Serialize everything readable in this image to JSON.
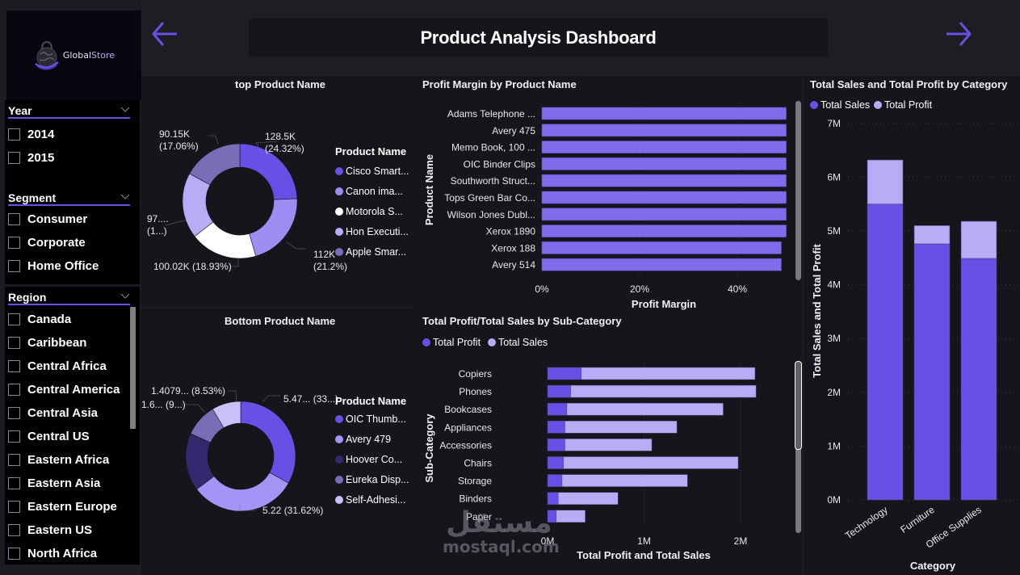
{
  "header": {
    "title": "Product Analysis Dashboard",
    "back_icon": "arrow-left-icon",
    "forward_icon": "arrow-right-icon",
    "accent_color": "#6650E6"
  },
  "logo": {
    "brand_prefix": "Global",
    "brand_suffix": "Store",
    "icon": "shopping-bag-globe-icon"
  },
  "slicers": {
    "year": {
      "title": "Year",
      "items": [
        "2014",
        "2015"
      ]
    },
    "segment": {
      "title": "Segment",
      "items": [
        "Consumer",
        "Corporate",
        "Home Office"
      ]
    },
    "region": {
      "title": "Region",
      "items": [
        "Canada",
        "Caribbean",
        "Central Africa",
        "Central America",
        "Central Asia",
        "Central US",
        "Eastern Africa",
        "Eastern Asia",
        "Eastern Europe",
        "Eastern US",
        "North Africa"
      ]
    }
  },
  "watermark": {
    "arabic": "مستقل",
    "latin": "mostaql.com"
  },
  "chart_data": [
    {
      "id": "top_products",
      "type": "pie",
      "variant": "donut",
      "title": "top Product Name",
      "legend_title": "Product Name",
      "legend_position": "right",
      "slices": [
        {
          "label": "Cisco Smart...",
          "value": 128.5,
          "display": "128.5K",
          "percent": "24.32%",
          "color": "#6650E6"
        },
        {
          "label": "Canon ima...",
          "value": 112.0,
          "display": "112K",
          "percent": "21.2%",
          "color": "#9E8CF2"
        },
        {
          "label": "Motorola S...",
          "value": 100.02,
          "display": "100.02K",
          "percent": "18.93%",
          "color": "#FFFFFF"
        },
        {
          "label": "Hon Executi...",
          "value": 97.7,
          "display": "97....",
          "percent": "1...",
          "color": "#B7ADF7"
        },
        {
          "label": "Apple Smar...",
          "value": 90.15,
          "display": "90.15K",
          "percent": "17.06%",
          "color": "#7A6DB8"
        }
      ],
      "data_labels": [
        "128.5K",
        "(24.32%)",
        "112K",
        "(21.2%)",
        "100.02K (18.93%)",
        "97....",
        "(1...)",
        "90.15K",
        "(17.06%)"
      ]
    },
    {
      "id": "bottom_products",
      "type": "pie",
      "variant": "donut",
      "title": "Bottom Product Name",
      "legend_title": "Product Name",
      "legend_position": "right",
      "slices": [
        {
          "label": "OIC Thumb...",
          "value": 5.47,
          "display": "5.47... (33...)",
          "color": "#6650E6"
        },
        {
          "label": "Avery 479",
          "value": 5.22,
          "display": "5.22 (31.62%)",
          "color": "#A394F5"
        },
        {
          "label": "Hoover Co...",
          "value": 2.81,
          "display": "",
          "color": "#35286E"
        },
        {
          "label": "Eureka Disp...",
          "value": 1.6,
          "display": "1.6... (9...)",
          "color": "#7A6DB8"
        },
        {
          "label": "Self-Adhesi...",
          "value": 1.4079,
          "display": "1.4079... (8.53%)",
          "color": "#C9C2FA"
        }
      ]
    },
    {
      "id": "profit_margin",
      "type": "bar",
      "orientation": "horizontal",
      "title": "Profit Margin by Product Name",
      "xlabel": "Profit Margin",
      "ylabel": "Product Name",
      "xlim": [
        0,
        50
      ],
      "xticks": [
        "0%",
        "20%",
        "40%"
      ],
      "xtick_values": [
        0,
        20,
        40
      ],
      "grid": true,
      "color": "#7F6CEB",
      "categories": [
        "Adams Telephone ...",
        "Avery 475",
        "Memo Book, 100 ...",
        "OIC Binder Clips",
        "Southworth Struct...",
        "Tops Green Bar Co...",
        "Wilson Jones Dubl...",
        "Xerox 1890",
        "Xerox 188",
        "Avery 514"
      ],
      "values": [
        50,
        50,
        50,
        50,
        50,
        50,
        50,
        50,
        49,
        49
      ]
    },
    {
      "id": "subcategory",
      "type": "bar",
      "orientation": "horizontal",
      "stacked": true,
      "title": "Total Profit/Total Sales by Sub-Category",
      "xlabel": "Total Profit and Total Sales",
      "ylabel": "Sub-Category",
      "xlim": [
        0,
        2.3
      ],
      "xticks": [
        "0M",
        "1M",
        "2M"
      ],
      "xtick_values": [
        0,
        1,
        2
      ],
      "legend_position": "top-left",
      "categories": [
        "Copiers",
        "Phones",
        "Bookcases",
        "Appliances",
        "Accessories",
        "Chairs",
        "Storage",
        "Binders",
        "Paper"
      ],
      "series": [
        {
          "name": "Total Profit",
          "color": "#6650E6",
          "values": [
            0.35,
            0.24,
            0.2,
            0.18,
            0.18,
            0.165,
            0.15,
            0.11,
            0.09
          ]
        },
        {
          "name": "Total Sales",
          "color": "#B7ADF7",
          "values": [
            1.8,
            1.92,
            1.62,
            1.16,
            0.9,
            1.81,
            1.3,
            0.62,
            0.3
          ]
        }
      ]
    },
    {
      "id": "category",
      "type": "bar",
      "orientation": "vertical",
      "stacked": true,
      "title": "Total Sales and Total Profit by Category",
      "xlabel": "Category",
      "ylabel": "Total Sales and Total Profit",
      "ylim": [
        0,
        7
      ],
      "yticks": [
        "0M",
        "1M",
        "2M",
        "3M",
        "4M",
        "5M",
        "6M",
        "7M"
      ],
      "legend_position": "top-left",
      "categories": [
        "Technology",
        "Furniture",
        "Office Supplies"
      ],
      "series": [
        {
          "name": "Total Sales",
          "color": "#6650E6",
          "values": [
            5.5,
            4.76,
            4.49
          ]
        },
        {
          "name": "Total Profit",
          "color": "#B7ADF7",
          "values": [
            0.82,
            0.34,
            0.69
          ]
        }
      ]
    }
  ]
}
